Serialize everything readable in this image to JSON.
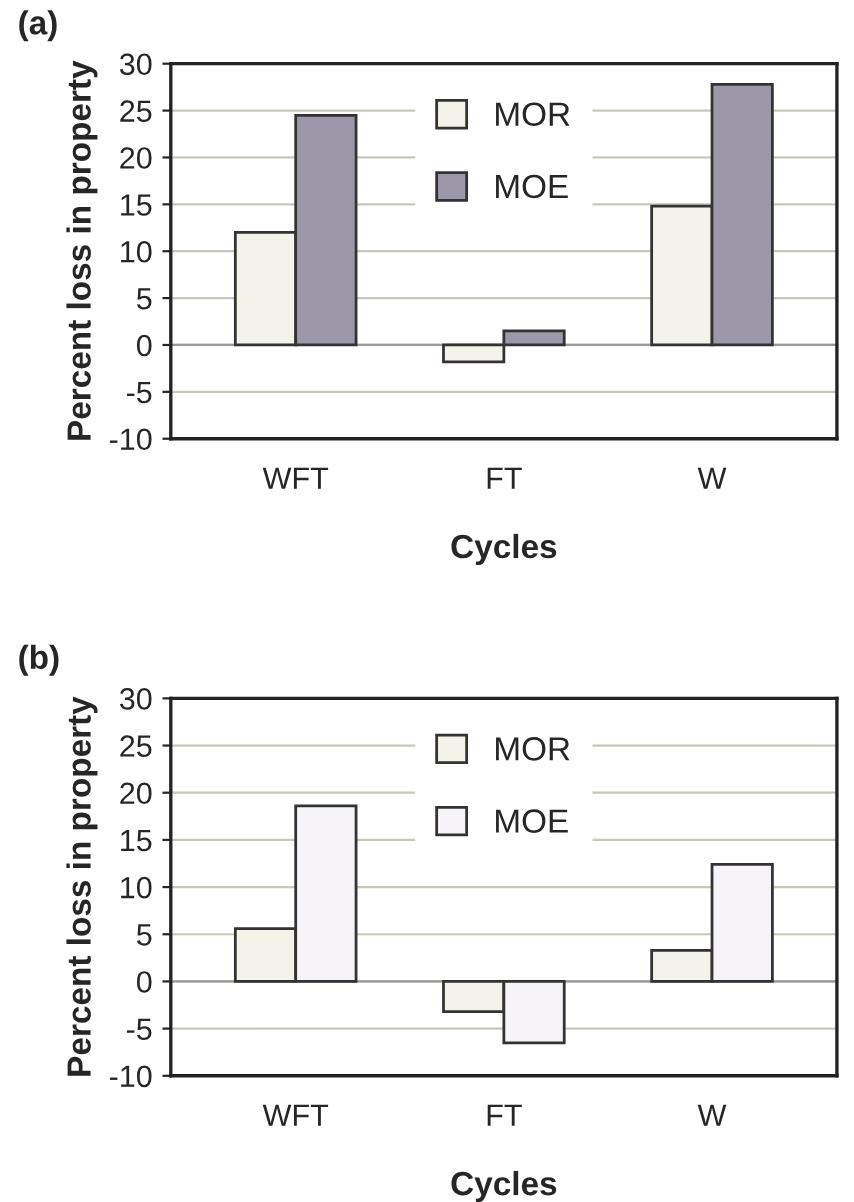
{
  "chart_data": [
    {
      "type": "bar",
      "title": "(a)",
      "xlabel": "Cycles",
      "ylabel": "Percent loss in property",
      "categories": [
        "WFT",
        "FT",
        "W"
      ],
      "series": [
        {
          "name": "MOR",
          "color": "#f4f3ea",
          "values": [
            12,
            -1.8,
            14.8
          ]
        },
        {
          "name": "MOE",
          "color": "#9d98a9",
          "values": [
            24.5,
            1.5,
            27.8
          ]
        }
      ],
      "ylim": [
        -10,
        30
      ],
      "yticks": [
        -10,
        -5,
        0,
        5,
        10,
        15,
        20,
        25,
        30
      ],
      "grid": "y",
      "legend": "top"
    },
    {
      "type": "bar",
      "title": "(b)",
      "xlabel": "Cycles",
      "ylabel": "Percent loss in property",
      "categories": [
        "WFT",
        "FT",
        "W"
      ],
      "series": [
        {
          "name": "MOR",
          "color": "#f4f3ea",
          "values": [
            5.6,
            -3.2,
            3.3
          ]
        },
        {
          "name": "MOE",
          "color": "#f6f4f8",
          "values": [
            18.6,
            -6.5,
            12.4
          ]
        }
      ],
      "ylim": [
        -10,
        30
      ],
      "yticks": [
        -10,
        -5,
        0,
        5,
        10,
        15,
        20,
        25,
        30
      ],
      "grid": "y",
      "legend": "top"
    }
  ]
}
